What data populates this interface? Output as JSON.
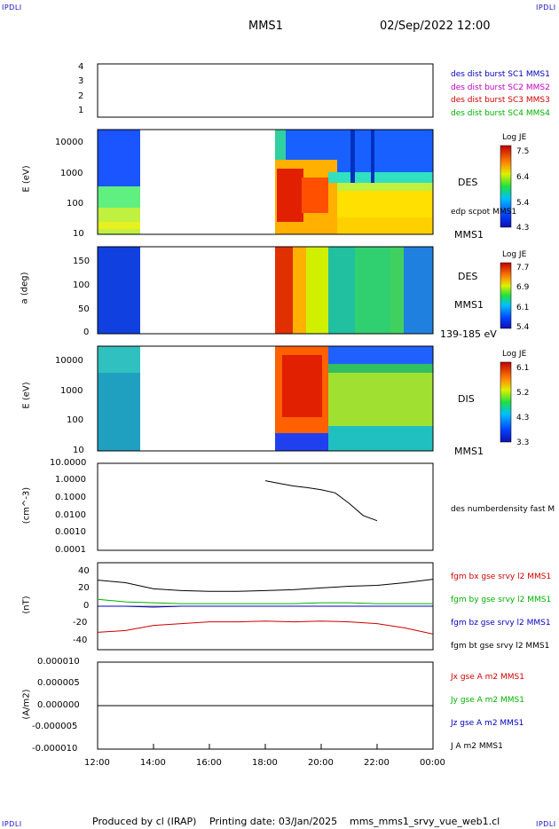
{
  "header": {
    "corner_left_top": "IPDLI",
    "corner_right_top": "IPDLI",
    "corner_left_bottom": "IPDLI",
    "corner_right_bottom": "IPDLI",
    "spacecraft": "MMS1",
    "datetime": "02/Sep/2022 12:00"
  },
  "footer": {
    "produced": "Produced by cl (IRAP)",
    "printing": "Printing date: 03/Jan/2025",
    "file": "mms_mms1_srvy_vue_web1.cl"
  },
  "time_axis": {
    "ticks": [
      "12:00",
      "14:00",
      "16:00",
      "18:00",
      "20:00",
      "22:00",
      "00:00"
    ]
  },
  "panels": {
    "burst": {
      "yticks": [
        "4",
        "3",
        "2",
        "1"
      ],
      "legend": [
        {
          "text": "des dist burst SC1 MMS1",
          "color": "#0000c0"
        },
        {
          "text": "des dist burst SC2 MMS2",
          "color": "#c000c0"
        },
        {
          "text": "des dist burst SC3 MMS3",
          "color": "#d00000"
        },
        {
          "text": "des dist burst SC4 MMS4",
          "color": "#00b000"
        }
      ]
    },
    "des_energy": {
      "ylabel": "E (eV)",
      "yticks": [
        "10000",
        "1000",
        "100",
        "10"
      ],
      "side_label_1": "DES",
      "side_label_2": "edp scpot MMS1",
      "side_label_3": "MMS1",
      "cbar_title": "Log JE",
      "cbar_ticks": [
        "7.5",
        "6.4",
        "5.4",
        "4.3"
      ]
    },
    "des_pitch": {
      "ylabel": "a (deg)",
      "yticks": [
        "150",
        "100",
        "50",
        "0"
      ],
      "side_label_1": "DES",
      "side_label_2": "MMS1",
      "side_label_3": "139-185 eV",
      "cbar_title": "Log JE",
      "cbar_ticks": [
        "7.7",
        "6.9",
        "6.1",
        "5.4"
      ]
    },
    "dis_energy": {
      "ylabel": "E (eV)",
      "yticks": [
        "10000",
        "1000",
        "100",
        "10"
      ],
      "side_label_1": "DIS",
      "side_label_2": "MMS1",
      "cbar_title": "Log JE",
      "cbar_ticks": [
        "6.1",
        "5.2",
        "4.3",
        "3.3"
      ]
    },
    "density": {
      "ylabel": "(cm^-3)",
      "yticks": [
        "10.0000",
        "1.0000",
        "0.1000",
        "0.0100",
        "0.0010",
        "0.0001"
      ],
      "legend": "des numberdensity fast M"
    },
    "bfield": {
      "ylabel": "(nT)",
      "yticks": [
        "40",
        "20",
        "0",
        "-20",
        "-40"
      ],
      "legend": [
        {
          "text": "fgm bx gse srvy l2 MMS1",
          "color": "#d00000"
        },
        {
          "text": "fgm by gse srvy l2 MMS1",
          "color": "#00b000"
        },
        {
          "text": "fgm bz gse srvy l2 MMS1",
          "color": "#0000c0"
        },
        {
          "text": "fgm bt gse srvy l2 MMS1",
          "color": "#000000"
        }
      ]
    },
    "current": {
      "ylabel": "(A/m2)",
      "yticks": [
        "0.000010",
        "0.000005",
        "0.000000",
        "-0.000005",
        "-0.000010"
      ],
      "legend": [
        {
          "text": "Jx gse A m2 MMS1",
          "color": "#d00000"
        },
        {
          "text": "Jy gse A m2 MMS1",
          "color": "#00b000"
        },
        {
          "text": "Jz gse A m2 MMS1",
          "color": "#0000c0"
        },
        {
          "text": "J A m2 MMS1",
          "color": "#000000"
        }
      ]
    }
  },
  "chart_data": [
    {
      "type": "line",
      "name_panel": "density",
      "x": [
        "18:00",
        "18:30",
        "19:00",
        "19:30",
        "20:00",
        "20:30",
        "21:00",
        "21:30",
        "22:00"
      ],
      "values": [
        1.0,
        0.7,
        0.5,
        0.4,
        0.3,
        0.2,
        0.05,
        0.01,
        0.005
      ],
      "ylim": [
        0.0001,
        10
      ],
      "yscale": "log"
    },
    {
      "type": "line",
      "name_panel": "bfield",
      "x": [
        "12:00",
        "13:00",
        "14:00",
        "15:00",
        "16:00",
        "17:00",
        "18:00",
        "19:00",
        "20:00",
        "21:00",
        "22:00",
        "23:00",
        "00:00"
      ],
      "series": [
        {
          "values": [
            -30,
            -28,
            -22,
            -20,
            -18,
            -18,
            -17,
            -18,
            -17,
            -18,
            -20,
            -25,
            -32
          ]
        },
        {
          "values": [
            8,
            5,
            4,
            3,
            3,
            3,
            3,
            3,
            4,
            4,
            3,
            3,
            3
          ]
        },
        {
          "values": [
            0,
            0,
            -1,
            0,
            0,
            0,
            0,
            0,
            0,
            0,
            0,
            0,
            0
          ]
        },
        {
          "values": [
            30,
            27,
            20,
            18,
            17,
            17,
            18,
            19,
            21,
            23,
            24,
            27,
            31
          ]
        }
      ],
      "ylim": [
        -50,
        50
      ]
    },
    {
      "type": "line",
      "name_panel": "current",
      "x": [
        "12:00",
        "00:00"
      ],
      "values": [
        0,
        0
      ],
      "ylim": [
        -1e-05,
        1e-05
      ]
    }
  ]
}
